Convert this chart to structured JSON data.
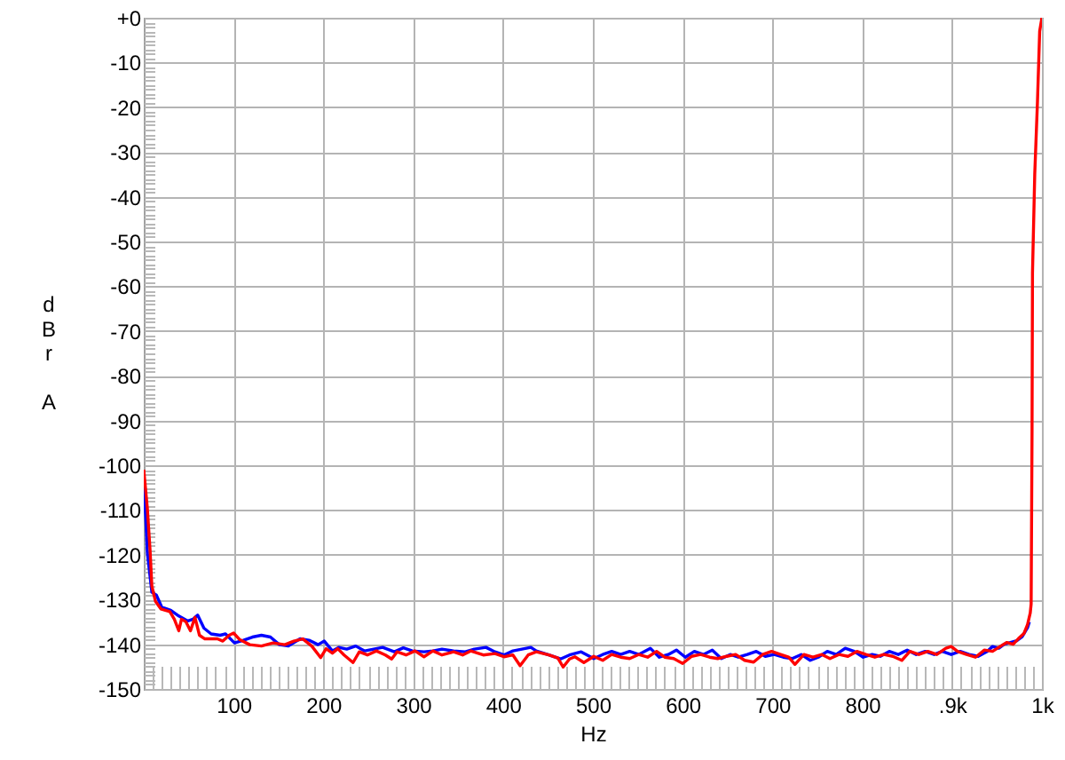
{
  "chart_data": {
    "type": "line",
    "xlabel": "Hz",
    "ylabel": "dBr A",
    "grid": true,
    "xlim": [
      0,
      1000
    ],
    "ylim": [
      -150,
      0
    ],
    "xticks": [
      {
        "value": 10,
        "label": null
      },
      {
        "value": 20,
        "label": null
      },
      {
        "value": 30,
        "label": null
      },
      {
        "value": 40,
        "label": null
      },
      {
        "value": 50,
        "label": null
      },
      {
        "value": 60,
        "label": null
      },
      {
        "value": 70,
        "label": null
      },
      {
        "value": 80,
        "label": null
      },
      {
        "value": 90,
        "label": null
      },
      100,
      {
        "value": 110,
        "label": null
      },
      {
        "value": 120,
        "label": null
      },
      {
        "value": 130,
        "label": null
      },
      {
        "value": 140,
        "label": null
      },
      {
        "value": 150,
        "label": null
      },
      {
        "value": 160,
        "label": null
      },
      {
        "value": 170,
        "label": null
      },
      {
        "value": 180,
        "label": null
      },
      {
        "value": 190,
        "label": null
      },
      200,
      {
        "value": 210,
        "label": null
      },
      {
        "value": 220,
        "label": null
      },
      {
        "value": 230,
        "label": null
      },
      {
        "value": 240,
        "label": null
      },
      {
        "value": 250,
        "label": null
      },
      {
        "value": 260,
        "label": null
      },
      {
        "value": 270,
        "label": null
      },
      {
        "value": 280,
        "label": null
      },
      {
        "value": 290,
        "label": null
      },
      300,
      {
        "value": 310,
        "label": null
      },
      {
        "value": 320,
        "label": null
      },
      {
        "value": 330,
        "label": null
      },
      {
        "value": 340,
        "label": null
      },
      {
        "value": 350,
        "label": null
      },
      {
        "value": 360,
        "label": null
      },
      {
        "value": 370,
        "label": null
      },
      {
        "value": 380,
        "label": null
      },
      {
        "value": 390,
        "label": null
      },
      400,
      {
        "value": 410,
        "label": null
      },
      {
        "value": 420,
        "label": null
      },
      {
        "value": 430,
        "label": null
      },
      {
        "value": 440,
        "label": null
      },
      {
        "value": 450,
        "label": null
      },
      {
        "value": 460,
        "label": null
      },
      {
        "value": 470,
        "label": null
      },
      {
        "value": 480,
        "label": null
      },
      {
        "value": 490,
        "label": null
      },
      500,
      {
        "value": 510,
        "label": null
      },
      {
        "value": 520,
        "label": null
      },
      {
        "value": 530,
        "label": null
      },
      {
        "value": 540,
        "label": null
      },
      {
        "value": 550,
        "label": null
      },
      {
        "value": 560,
        "label": null
      },
      {
        "value": 570,
        "label": null
      },
      {
        "value": 580,
        "label": null
      },
      {
        "value": 590,
        "label": null
      },
      600,
      {
        "value": 610,
        "label": null
      },
      {
        "value": 620,
        "label": null
      },
      {
        "value": 630,
        "label": null
      },
      {
        "value": 640,
        "label": null
      },
      {
        "value": 650,
        "label": null
      },
      {
        "value": 660,
        "label": null
      },
      {
        "value": 670,
        "label": null
      },
      {
        "value": 680,
        "label": null
      },
      {
        "value": 690,
        "label": null
      },
      700,
      {
        "value": 710,
        "label": null
      },
      {
        "value": 720,
        "label": null
      },
      {
        "value": 730,
        "label": null
      },
      {
        "value": 740,
        "label": null
      },
      {
        "value": 750,
        "label": null
      },
      {
        "value": 760,
        "label": null
      },
      {
        "value": 770,
        "label": null
      },
      {
        "value": 780,
        "label": null
      },
      {
        "value": 790,
        "label": null
      },
      800,
      {
        "value": 810,
        "label": null
      },
      {
        "value": 820,
        "label": null
      },
      {
        "value": 830,
        "label": null
      },
      {
        "value": 840,
        "label": null
      },
      {
        "value": 850,
        "label": null
      },
      {
        "value": 860,
        "label": null
      },
      {
        "value": 870,
        "label": null
      },
      {
        "value": 880,
        "label": null
      },
      {
        "value": 890,
        "label": null
      },
      {
        "value": 900,
        "label": ".9k"
      },
      {
        "value": 910,
        "label": null
      },
      {
        "value": 920,
        "label": null
      },
      {
        "value": 930,
        "label": null
      },
      {
        "value": 940,
        "label": null
      },
      {
        "value": 950,
        "label": null
      },
      {
        "value": 960,
        "label": null
      },
      {
        "value": 970,
        "label": null
      },
      {
        "value": 980,
        "label": null
      },
      {
        "value": 990,
        "label": null
      },
      {
        "value": 1000,
        "label": "1k"
      }
    ],
    "yticks": [
      {
        "value": 0,
        "label": "+0"
      },
      {
        "value": -1,
        "label": null
      },
      {
        "value": -2,
        "label": null
      },
      {
        "value": -3,
        "label": null
      },
      {
        "value": -4,
        "label": null
      },
      {
        "value": -5,
        "label": null
      },
      {
        "value": -6,
        "label": null
      },
      {
        "value": -7,
        "label": null
      },
      {
        "value": -8,
        "label": null
      },
      {
        "value": -9,
        "label": null
      },
      -10,
      {
        "value": -11,
        "label": null
      },
      {
        "value": -12,
        "label": null
      },
      {
        "value": -13,
        "label": null
      },
      {
        "value": -14,
        "label": null
      },
      {
        "value": -15,
        "label": null
      },
      {
        "value": -16,
        "label": null
      },
      {
        "value": -17,
        "label": null
      },
      {
        "value": -18,
        "label": null
      },
      {
        "value": -19,
        "label": null
      },
      -20,
      {
        "value": -21,
        "label": null
      },
      {
        "value": -22,
        "label": null
      },
      {
        "value": -23,
        "label": null
      },
      {
        "value": -24,
        "label": null
      },
      {
        "value": -25,
        "label": null
      },
      {
        "value": -26,
        "label": null
      },
      {
        "value": -27,
        "label": null
      },
      {
        "value": -28,
        "label": null
      },
      {
        "value": -29,
        "label": null
      },
      -30,
      {
        "value": -31,
        "label": null
      },
      {
        "value": -32,
        "label": null
      },
      {
        "value": -33,
        "label": null
      },
      {
        "value": -34,
        "label": null
      },
      {
        "value": -35,
        "label": null
      },
      {
        "value": -36,
        "label": null
      },
      {
        "value": -37,
        "label": null
      },
      {
        "value": -38,
        "label": null
      },
      {
        "value": -39,
        "label": null
      },
      -40,
      {
        "value": -41,
        "label": null
      },
      {
        "value": -42,
        "label": null
      },
      {
        "value": -43,
        "label": null
      },
      {
        "value": -44,
        "label": null
      },
      {
        "value": -45,
        "label": null
      },
      {
        "value": -46,
        "label": null
      },
      {
        "value": -47,
        "label": null
      },
      {
        "value": -48,
        "label": null
      },
      {
        "value": -49,
        "label": null
      },
      -50,
      {
        "value": -51,
        "label": null
      },
      {
        "value": -52,
        "label": null
      },
      {
        "value": -53,
        "label": null
      },
      {
        "value": -54,
        "label": null
      },
      {
        "value": -55,
        "label": null
      },
      {
        "value": -56,
        "label": null
      },
      {
        "value": -57,
        "label": null
      },
      {
        "value": -58,
        "label": null
      },
      {
        "value": -59,
        "label": null
      },
      -60,
      {
        "value": -61,
        "label": null
      },
      {
        "value": -62,
        "label": null
      },
      {
        "value": -63,
        "label": null
      },
      {
        "value": -64,
        "label": null
      },
      {
        "value": -65,
        "label": null
      },
      {
        "value": -66,
        "label": null
      },
      {
        "value": -67,
        "label": null
      },
      {
        "value": -68,
        "label": null
      },
      {
        "value": -69,
        "label": null
      },
      -70,
      {
        "value": -71,
        "label": null
      },
      {
        "value": -72,
        "label": null
      },
      {
        "value": -73,
        "label": null
      },
      {
        "value": -74,
        "label": null
      },
      {
        "value": -75,
        "label": null
      },
      {
        "value": -76,
        "label": null
      },
      {
        "value": -77,
        "label": null
      },
      {
        "value": -78,
        "label": null
      },
      {
        "value": -79,
        "label": null
      },
      -80,
      {
        "value": -81,
        "label": null
      },
      {
        "value": -82,
        "label": null
      },
      {
        "value": -83,
        "label": null
      },
      {
        "value": -84,
        "label": null
      },
      {
        "value": -85,
        "label": null
      },
      {
        "value": -86,
        "label": null
      },
      {
        "value": -87,
        "label": null
      },
      {
        "value": -88,
        "label": null
      },
      {
        "value": -89,
        "label": null
      },
      -90,
      {
        "value": -91,
        "label": null
      },
      {
        "value": -92,
        "label": null
      },
      {
        "value": -93,
        "label": null
      },
      {
        "value": -94,
        "label": null
      },
      {
        "value": -95,
        "label": null
      },
      {
        "value": -96,
        "label": null
      },
      {
        "value": -97,
        "label": null
      },
      {
        "value": -98,
        "label": null
      },
      {
        "value": -99,
        "label": null
      },
      -100,
      {
        "value": -101,
        "label": null
      },
      {
        "value": -102,
        "label": null
      },
      {
        "value": -103,
        "label": null
      },
      {
        "value": -104,
        "label": null
      },
      {
        "value": -105,
        "label": null
      },
      {
        "value": -106,
        "label": null
      },
      {
        "value": -107,
        "label": null
      },
      {
        "value": -108,
        "label": null
      },
      {
        "value": -109,
        "label": null
      },
      -110,
      {
        "value": -111,
        "label": null
      },
      {
        "value": -112,
        "label": null
      },
      {
        "value": -113,
        "label": null
      },
      {
        "value": -114,
        "label": null
      },
      {
        "value": -115,
        "label": null
      },
      {
        "value": -116,
        "label": null
      },
      {
        "value": -117,
        "label": null
      },
      {
        "value": -118,
        "label": null
      },
      {
        "value": -119,
        "label": null
      },
      -120,
      {
        "value": -121,
        "label": null
      },
      {
        "value": -122,
        "label": null
      },
      {
        "value": -123,
        "label": null
      },
      {
        "value": -124,
        "label": null
      },
      {
        "value": -125,
        "label": null
      },
      {
        "value": -126,
        "label": null
      },
      {
        "value": -127,
        "label": null
      },
      {
        "value": -128,
        "label": null
      },
      {
        "value": -129,
        "label": null
      },
      -130,
      {
        "value": -131,
        "label": null
      },
      {
        "value": -132,
        "label": null
      },
      {
        "value": -133,
        "label": null
      },
      {
        "value": -134,
        "label": null
      },
      {
        "value": -135,
        "label": null
      },
      {
        "value": -136,
        "label": null
      },
      {
        "value": -137,
        "label": null
      },
      {
        "value": -138,
        "label": null
      },
      {
        "value": -139,
        "label": null
      },
      -140,
      {
        "value": -141,
        "label": null
      },
      {
        "value": -142,
        "label": null
      },
      {
        "value": -143,
        "label": null
      },
      {
        "value": -144,
        "label": null
      },
      {
        "value": -145,
        "label": null
      },
      {
        "value": -146,
        "label": null
      },
      {
        "value": -147,
        "label": null
      },
      {
        "value": -148,
        "label": null
      },
      {
        "value": -149,
        "label": null
      },
      -150
    ],
    "series": [
      {
        "color": "#0000ff",
        "x": [
          0,
          2,
          4,
          9,
          14,
          20,
          30,
          39,
          49,
          55,
          60,
          67,
          75,
          85,
          91,
          101,
          111,
          121,
          131,
          141,
          151,
          161,
          174,
          184,
          194,
          201,
          210,
          217,
          226,
          236,
          246,
          256,
          266,
          279,
          289,
          299,
          312,
          322,
          332,
          345,
          358,
          368,
          381,
          391,
          401,
          411,
          421,
          431,
          437,
          451,
          464,
          474,
          487,
          501,
          511,
          521,
          531,
          541,
          551,
          564,
          574,
          584,
          593,
          603,
          613,
          623,
          633,
          643,
          653,
          662,
          672,
          682,
          692,
          702,
          712,
          722,
          732,
          742,
          751,
          761,
          771,
          781,
          791,
          801,
          811,
          820,
          830,
          840,
          850,
          860,
          870,
          880,
          889,
          899,
          909,
          919,
          929,
          939,
          945,
          952,
          958,
          965,
          972,
          978,
          984,
          986
        ],
        "values": [
          -104.4,
          -111,
          -119.6,
          -128.4,
          -129,
          -131.7,
          -132.4,
          -133.7,
          -134.8,
          -134.4,
          -133.5,
          -136.4,
          -137.7,
          -138,
          -137.7,
          -139.7,
          -139.1,
          -138.4,
          -138,
          -138.4,
          -140.1,
          -140.4,
          -138.8,
          -139.1,
          -140.1,
          -139.3,
          -141.5,
          -140.7,
          -141.1,
          -140.4,
          -141.5,
          -141.1,
          -140.7,
          -141.7,
          -140.8,
          -141.5,
          -141.7,
          -141.5,
          -141.1,
          -141.5,
          -141.7,
          -141.1,
          -140.7,
          -141.7,
          -142.4,
          -141.5,
          -141.1,
          -140.7,
          -141.5,
          -142.4,
          -143.3,
          -142.4,
          -141.7,
          -143.2,
          -142.3,
          -141.6,
          -142.3,
          -141.6,
          -142.3,
          -140.9,
          -142.9,
          -142.3,
          -141.3,
          -142.9,
          -141.6,
          -142.3,
          -141.3,
          -143.2,
          -142.3,
          -142.9,
          -142.3,
          -141.6,
          -142.7,
          -142.3,
          -142.9,
          -143.2,
          -142.3,
          -143.6,
          -142.9,
          -141.6,
          -142.3,
          -140.9,
          -141.6,
          -142.9,
          -142.3,
          -142.7,
          -141.6,
          -142.3,
          -141.3,
          -142.3,
          -141.6,
          -142.3,
          -141.6,
          -142.3,
          -141.6,
          -142.3,
          -142.7,
          -141.6,
          -140.5,
          -140.9,
          -140,
          -139.6,
          -139.2,
          -138.3,
          -136.3,
          -135
        ]
      },
      {
        "color": "#ff0000",
        "x": [
          0,
          4,
          7,
          9,
          13,
          19,
          29,
          34,
          39,
          42,
          47,
          52,
          57,
          62,
          68,
          82,
          88,
          95,
          100,
          107,
          118,
          131,
          144,
          157,
          167,
          177,
          187,
          197,
          203,
          210,
          216,
          223,
          233,
          240,
          249,
          259,
          269,
          276,
          282,
          292,
          302,
          312,
          322,
          332,
          345,
          355,
          364,
          378,
          391,
          401,
          411,
          419,
          428,
          437,
          451,
          461,
          467,
          474,
          480,
          490,
          501,
          511,
          521,
          531,
          541,
          551,
          561,
          571,
          580,
          590,
          600,
          610,
          620,
          630,
          639,
          649,
          659,
          669,
          679,
          689,
          699,
          709,
          718,
          725,
          735,
          745,
          755,
          764,
          774,
          784,
          794,
          804,
          814,
          824,
          834,
          844,
          853,
          863,
          873,
          883,
          893,
          899,
          906,
          916,
          926,
          936,
          945,
          955,
          961,
          968,
          974,
          980,
          984,
          987,
          988,
          989,
          989.5,
          992,
          995,
          997.5,
          1000
        ],
        "values": [
          -101,
          -109.7,
          -119,
          -127,
          -130.4,
          -132.1,
          -132.7,
          -134.4,
          -137,
          -134.4,
          -135,
          -137,
          -134,
          -138,
          -138.8,
          -138.8,
          -139.3,
          -138,
          -137.5,
          -139,
          -140.1,
          -140.4,
          -139.7,
          -140.1,
          -139.3,
          -138.8,
          -140.4,
          -143,
          -141,
          -142,
          -141,
          -142.4,
          -144.1,
          -141.7,
          -142.4,
          -141.5,
          -142.4,
          -143.3,
          -141.7,
          -142.4,
          -141.5,
          -142.8,
          -141.5,
          -142.4,
          -141.7,
          -142.4,
          -141.5,
          -142.4,
          -142.1,
          -142.8,
          -142.4,
          -144.8,
          -142.4,
          -141.7,
          -142.4,
          -143.1,
          -145.1,
          -143.3,
          -142.8,
          -144.1,
          -142.7,
          -143.6,
          -142.3,
          -142.9,
          -143.2,
          -142.3,
          -142.9,
          -141.6,
          -142.9,
          -143.2,
          -144.3,
          -142.7,
          -142.3,
          -142.9,
          -143.2,
          -142.7,
          -142.3,
          -143.6,
          -144,
          -142.3,
          -141.6,
          -142.3,
          -142.9,
          -144.5,
          -142.3,
          -142.9,
          -142.3,
          -143.2,
          -142.3,
          -142.7,
          -141.6,
          -142.3,
          -142.9,
          -142.3,
          -142.7,
          -143.6,
          -141.6,
          -142.3,
          -141.6,
          -142.3,
          -140.9,
          -140.5,
          -141.6,
          -142.3,
          -142.9,
          -141.3,
          -141.6,
          -140.3,
          -139.6,
          -140,
          -138.7,
          -137.6,
          -135.6,
          -133,
          -131,
          -92,
          -57,
          -35,
          -19,
          -3,
          0
        ]
      }
    ]
  }
}
